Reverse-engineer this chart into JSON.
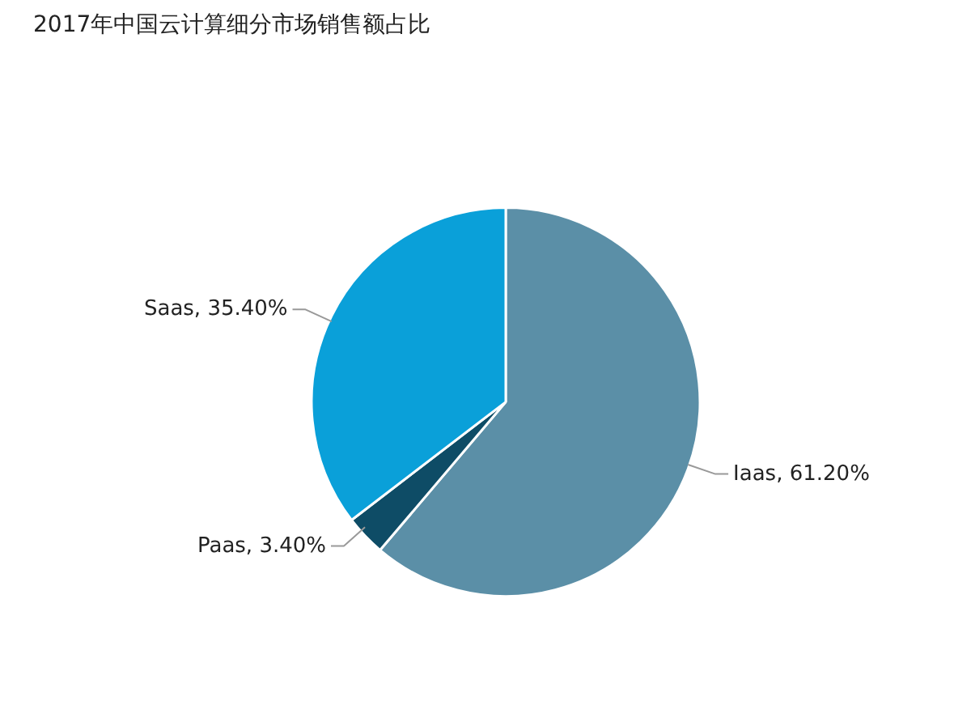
{
  "chart_data": {
    "type": "pie",
    "title": "2017年中国云计算细分市场销售额占比",
    "categories": [
      "Iaas",
      "Paas",
      "Saas"
    ],
    "values": [
      61.2,
      3.4,
      35.4
    ],
    "value_labels": [
      "61.20%",
      "3.40%",
      "35.40%"
    ],
    "colors": [
      "#5b8fa7",
      "#0e4c66",
      "#0aa0d9"
    ]
  }
}
